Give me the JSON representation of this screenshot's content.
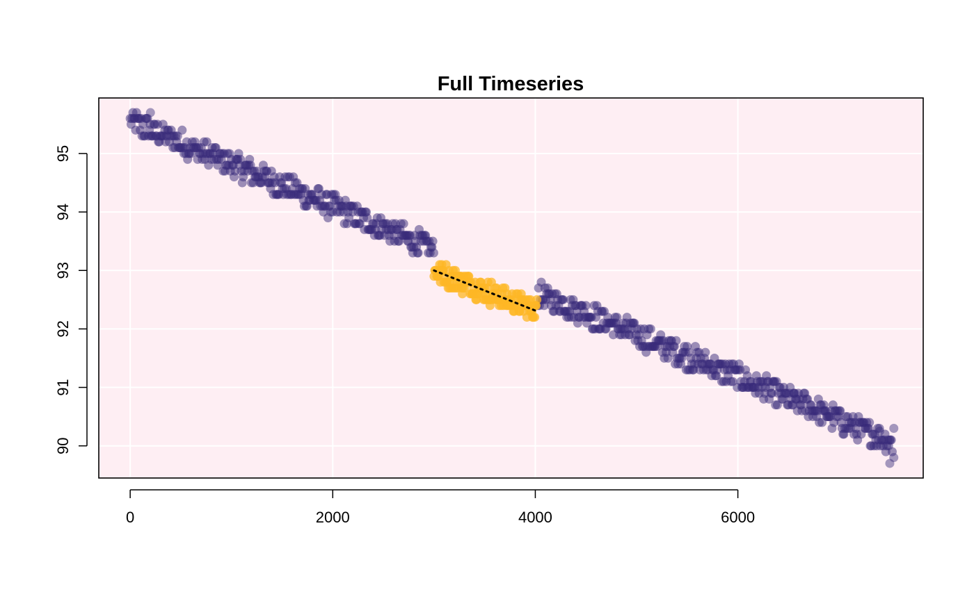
{
  "chart_data": {
    "type": "scatter",
    "title": "Full Timeseries",
    "xlabel": "",
    "ylabel": "",
    "xlim": [
      -310,
      7830
    ],
    "ylim": [
      89.45,
      95.95
    ],
    "x_ticks": [
      0,
      2000,
      4000,
      6000
    ],
    "y_ticks": [
      90,
      91,
      92,
      93,
      94,
      95
    ],
    "grid": true,
    "colors": {
      "background": "#FEEEF3",
      "grid": "#FFFFFF",
      "points": "#372A7A",
      "highlight": "#FDB726",
      "fit_line": "#000000"
    },
    "series": [
      {
        "role": "full-series",
        "x_range": [
          0,
          7530
        ],
        "trend_start": [
          0,
          95.55
        ],
        "trend_end": [
          7530,
          90.05
        ],
        "spread": 0.2,
        "outliers": [
          [
            7400,
            90.25
          ],
          [
            7500,
            89.7
          ],
          [
            7540,
            90.3
          ],
          [
            7540,
            89.8
          ],
          [
            200,
            95.7
          ],
          [
            2740,
            93.5
          ],
          [
            6550,
            90.9
          ],
          [
            6850,
            90.6
          ]
        ]
      },
      {
        "role": "highlighted-window",
        "x_range": [
          3000,
          4020
        ],
        "trend_start": [
          3000,
          93.0
        ],
        "trend_end": [
          4020,
          92.3
        ],
        "spread": 0.18
      }
    ],
    "fit_line": {
      "style": "dotted",
      "x": [
        3000,
        4020
      ],
      "y": [
        93.0,
        92.3
      ]
    }
  }
}
